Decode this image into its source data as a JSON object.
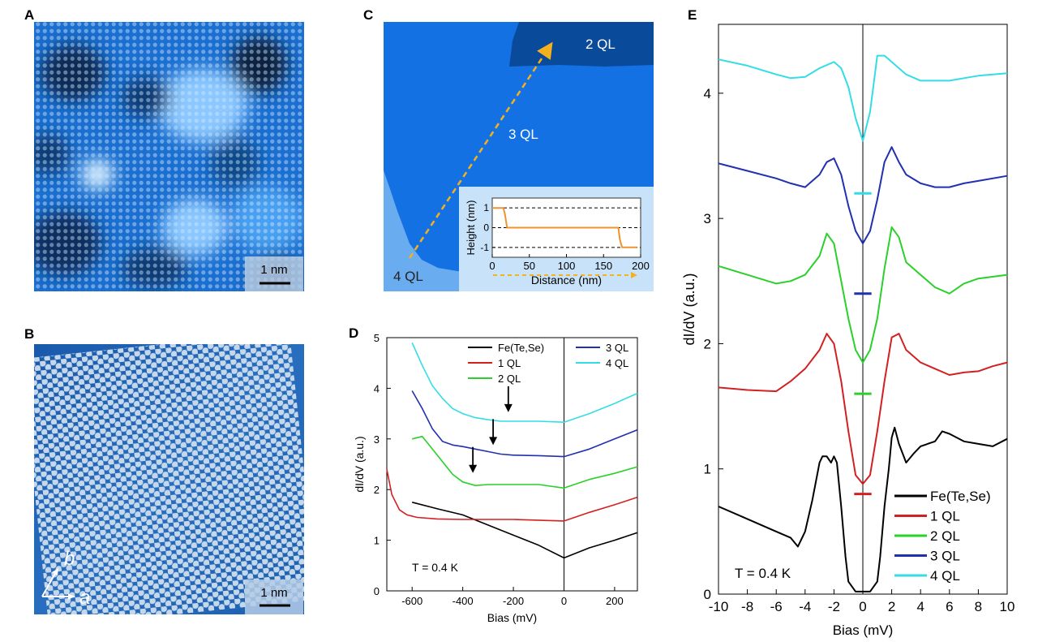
{
  "panels": {
    "A": {
      "label": "A",
      "scalebar": "1 nm"
    },
    "B": {
      "label": "B",
      "scalebar": "1 nm",
      "axis_a": "a",
      "axis_b": "b"
    },
    "C": {
      "label": "C",
      "region_2ql": "2 QL",
      "region_3ql": "3 QL",
      "region_4ql": "4 QL"
    },
    "D": {
      "label": "D",
      "temperature": "T = 0.4 K"
    },
    "E": {
      "label": "E",
      "temperature": "T = 0.4 K"
    }
  },
  "chart_data": [
    {
      "id": "C-inset",
      "type": "line",
      "title": "",
      "xlabel": "Distance (nm)",
      "ylabel": "Height (nm)",
      "xlim": [
        0,
        200
      ],
      "ylim": [
        -1.5,
        1.5
      ],
      "xticks": [
        "0",
        "50",
        "100",
        "150",
        "200"
      ],
      "yticks": [
        "1",
        "0",
        "-1"
      ],
      "series": [
        {
          "name": "height",
          "color": "#f0922e",
          "x": [
            0,
            15,
            17,
            20,
            60,
            100,
            140,
            170,
            172,
            175,
            195
          ],
          "y": [
            1.0,
            1.0,
            0.7,
            0.0,
            0.0,
            0.0,
            0.0,
            0.0,
            -0.6,
            -1.0,
            -1.0
          ]
        }
      ]
    },
    {
      "id": "D",
      "type": "line",
      "xlabel": "Bias (mV)",
      "ylabel": "dI/dV (a.u.)",
      "xlim": [
        -700,
        290
      ],
      "ylim": [
        0,
        5
      ],
      "xticks": [
        "-600",
        "-400",
        "-200",
        "0",
        "200"
      ],
      "yticks": [
        "0",
        "1",
        "2",
        "3",
        "4",
        "5"
      ],
      "legend": [
        "Fe(Te,Se)",
        "1 QL",
        "2 QL",
        "3 QL",
        "4 QL"
      ],
      "arrows_mV": [
        -360,
        -280,
        -220
      ],
      "series": [
        {
          "name": "Fe(Te,Se)",
          "color": "#000000",
          "x": [
            -600,
            -500,
            -400,
            -300,
            -200,
            -100,
            0,
            100,
            200,
            290
          ],
          "y": [
            1.75,
            1.62,
            1.5,
            1.3,
            1.1,
            0.9,
            0.65,
            0.85,
            1.0,
            1.15
          ]
        },
        {
          "name": "1 QL",
          "color": "#d42020",
          "x": [
            -700,
            -680,
            -650,
            -620,
            -580,
            -500,
            -400,
            -200,
            0,
            100,
            200,
            290
          ],
          "y": [
            2.4,
            1.9,
            1.6,
            1.5,
            1.45,
            1.42,
            1.41,
            1.41,
            1.38,
            1.55,
            1.7,
            1.85
          ]
        },
        {
          "name": "2 QL",
          "color": "#2ad12a",
          "x": [
            -600,
            -560,
            -520,
            -480,
            -440,
            -400,
            -350,
            -300,
            -200,
            -100,
            0,
            100,
            200,
            290
          ],
          "y": [
            3.0,
            3.05,
            2.8,
            2.55,
            2.3,
            2.15,
            2.08,
            2.1,
            2.1,
            2.1,
            2.03,
            2.2,
            2.32,
            2.45
          ]
        },
        {
          "name": "3 QL",
          "color": "#2030b0",
          "x": [
            -600,
            -560,
            -520,
            -480,
            -440,
            -400,
            -350,
            -300,
            -250,
            -200,
            -100,
            0,
            100,
            200,
            290
          ],
          "y": [
            3.95,
            3.6,
            3.2,
            2.95,
            2.88,
            2.85,
            2.8,
            2.75,
            2.7,
            2.68,
            2.67,
            2.65,
            2.8,
            3.0,
            3.18
          ]
        },
        {
          "name": "4 QL",
          "color": "#33dde6",
          "x": [
            -600,
            -560,
            -520,
            -480,
            -440,
            -400,
            -350,
            -300,
            -250,
            -200,
            -100,
            0,
            100,
            200,
            290
          ],
          "y": [
            4.9,
            4.45,
            4.05,
            3.8,
            3.6,
            3.5,
            3.42,
            3.38,
            3.35,
            3.35,
            3.35,
            3.33,
            3.5,
            3.7,
            3.9
          ]
        }
      ]
    },
    {
      "id": "E",
      "type": "line",
      "xlabel": "Bias (mV)",
      "ylabel": "dI/dV (a.u.)",
      "xlim": [
        -10,
        10
      ],
      "ylim": [
        0,
        4.55
      ],
      "xticks": [
        "-10",
        "-8",
        "-6",
        "-4",
        "-2",
        "0",
        "2",
        "4",
        "6",
        "8",
        "10"
      ],
      "yticks": [
        "0",
        "1",
        "2",
        "3",
        "4"
      ],
      "legend": [
        "Fe(Te,Se)",
        "1 QL",
        "2 QL",
        "3 QL",
        "4 QL"
      ],
      "zero_markers": [
        {
          "y": 0.8,
          "color": "#d42020"
        },
        {
          "y": 1.6,
          "color": "#2ad12a"
        },
        {
          "y": 2.4,
          "color": "#2030b0"
        },
        {
          "y": 3.2,
          "color": "#33dde6"
        }
      ],
      "series": [
        {
          "name": "Fe(Te,Se)",
          "color": "#000000",
          "x": [
            -10,
            -8,
            -6,
            -5,
            -4.5,
            -4,
            -3.5,
            -3,
            -2.8,
            -2.5,
            -2.2,
            -2,
            -1.8,
            -1.5,
            -1.2,
            -1,
            -0.5,
            0,
            0.5,
            1,
            1.2,
            1.5,
            1.8,
            2,
            2.2,
            2.5,
            3,
            3.5,
            4,
            5,
            5.5,
            6,
            7,
            8,
            9,
            10
          ],
          "y": [
            0.7,
            0.6,
            0.5,
            0.45,
            0.38,
            0.5,
            0.75,
            1.05,
            1.1,
            1.1,
            1.05,
            1.1,
            1.05,
            0.7,
            0.3,
            0.1,
            0.02,
            0.02,
            0.02,
            0.1,
            0.3,
            0.7,
            1.0,
            1.25,
            1.33,
            1.2,
            1.05,
            1.12,
            1.18,
            1.22,
            1.3,
            1.28,
            1.22,
            1.2,
            1.18,
            1.24
          ]
        },
        {
          "name": "1 QL",
          "color": "#d42020",
          "x": [
            -10,
            -8,
            -6,
            -5,
            -4,
            -3,
            -2.5,
            -2,
            -1.5,
            -1,
            -0.5,
            0,
            0.5,
            1,
            1.5,
            2,
            2.5,
            3,
            4,
            5,
            6,
            7,
            8,
            9,
            10
          ],
          "y": [
            1.65,
            1.63,
            1.62,
            1.7,
            1.8,
            1.95,
            2.08,
            2.0,
            1.7,
            1.3,
            0.95,
            0.88,
            0.95,
            1.3,
            1.7,
            2.05,
            2.08,
            1.95,
            1.85,
            1.8,
            1.75,
            1.77,
            1.78,
            1.82,
            1.85
          ]
        },
        {
          "name": "2 QL",
          "color": "#2ad12a",
          "x": [
            -10,
            -8,
            -6,
            -5,
            -4,
            -3,
            -2.5,
            -2,
            -1.5,
            -1,
            -0.5,
            0,
            0.5,
            1,
            1.5,
            2,
            2.5,
            3,
            4,
            5,
            6,
            7,
            8,
            10
          ],
          "y": [
            2.62,
            2.55,
            2.48,
            2.5,
            2.55,
            2.7,
            2.88,
            2.8,
            2.5,
            2.2,
            1.95,
            1.85,
            1.95,
            2.2,
            2.6,
            2.93,
            2.85,
            2.65,
            2.55,
            2.45,
            2.4,
            2.48,
            2.52,
            2.55
          ]
        },
        {
          "name": "3 QL",
          "color": "#2030b0",
          "x": [
            -10,
            -8,
            -6,
            -5,
            -4,
            -3,
            -2.5,
            -2,
            -1.5,
            -1,
            -0.5,
            0,
            0.5,
            1,
            1.5,
            2,
            2.5,
            3,
            4,
            5,
            6,
            7,
            8,
            10
          ],
          "y": [
            3.44,
            3.38,
            3.32,
            3.28,
            3.25,
            3.35,
            3.45,
            3.48,
            3.35,
            3.1,
            2.9,
            2.8,
            2.9,
            3.15,
            3.45,
            3.57,
            3.45,
            3.35,
            3.28,
            3.25,
            3.25,
            3.28,
            3.3,
            3.34
          ]
        },
        {
          "name": "4 QL",
          "color": "#33dde6",
          "x": [
            -10,
            -8,
            -6,
            -5,
            -4,
            -3,
            -2,
            -1.5,
            -1,
            -0.5,
            0,
            0.5,
            1,
            1.5,
            2,
            3,
            4,
            5,
            6,
            7,
            8,
            10
          ],
          "y": [
            4.27,
            4.22,
            4.15,
            4.12,
            4.13,
            4.2,
            4.25,
            4.2,
            4.05,
            3.8,
            3.62,
            3.85,
            4.3,
            4.3,
            4.25,
            4.15,
            4.1,
            4.1,
            4.1,
            4.12,
            4.14,
            4.16
          ]
        }
      ]
    }
  ]
}
